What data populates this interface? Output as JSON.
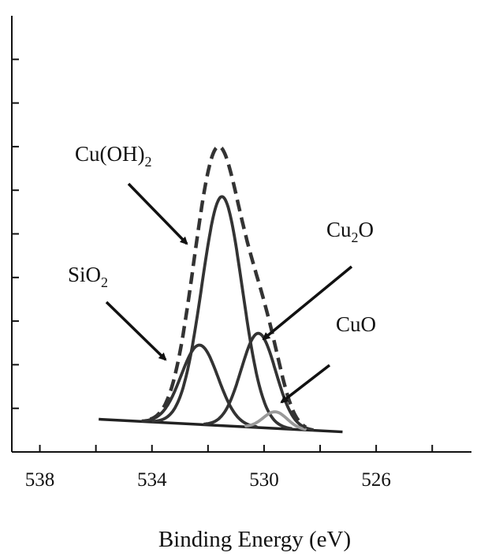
{
  "chart_data": {
    "type": "line",
    "title": "",
    "xlabel": "Binding Energy (eV)",
    "ylabel": "",
    "x_reversed": true,
    "xlim": [
      539,
      522.6
    ],
    "xticks": [
      538,
      534,
      530,
      526
    ],
    "x_minor_ticks": [
      536,
      532,
      528,
      524
    ],
    "ylim": [
      0,
      100
    ],
    "y_tick_values": [
      10,
      20,
      30,
      40,
      50,
      60,
      70,
      80,
      90
    ],
    "grid": false,
    "baseline": {
      "x": [
        535.9,
        527.2
      ],
      "y": [
        7.5,
        4.6
      ]
    },
    "series": [
      {
        "name": "Cu(OH)2",
        "center": 531.5,
        "height": 52.5,
        "fwhm": 1.7,
        "color": "#333333",
        "style": "solid"
      },
      {
        "name": "SiO2",
        "center": 532.3,
        "height": 18.2,
        "fwhm": 1.55,
        "color": "#333333",
        "style": "solid"
      },
      {
        "name": "Cu2O",
        "center": 530.2,
        "height": 21.6,
        "fwhm": 1.45,
        "color": "#333333",
        "style": "solid"
      },
      {
        "name": "CuO",
        "center": 529.6,
        "height": 3.8,
        "fwhm": 1.0,
        "color": "#999999",
        "style": "solid"
      },
      {
        "name": "envelope",
        "center": null,
        "height": null,
        "fwhm": null,
        "color": "#333333",
        "style": "dashed"
      }
    ],
    "annotations": [
      {
        "label_main": "Cu(OH)",
        "label_sub": "2",
        "label_tail": "",
        "points_to": [
          532.4,
          41.8
        ]
      },
      {
        "label_main": "SiO",
        "label_sub": "2",
        "label_tail": "",
        "points_to": [
          533.0,
          13.6
        ]
      },
      {
        "label_main": "Cu",
        "label_sub": "2",
        "label_tail": "O",
        "points_to": [
          530.1,
          18.3
        ]
      },
      {
        "label_main": "CuO",
        "label_sub": "",
        "label_tail": "",
        "points_to": [
          529.4,
          7.3
        ]
      }
    ]
  }
}
